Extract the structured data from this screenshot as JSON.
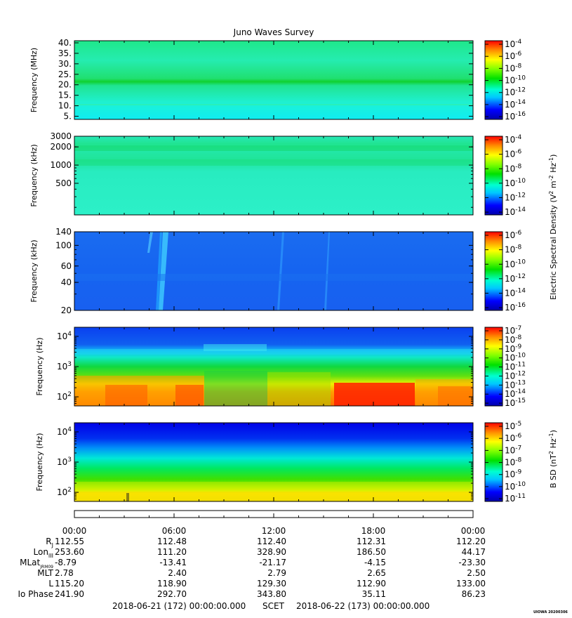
{
  "title": "Juno Waves Survey",
  "chart_data": [
    {
      "type": "heatmap",
      "ylabel": "Frequency (MHz)",
      "yscale": "linear",
      "ylim": [
        3.5,
        41
      ],
      "yticks": [
        5,
        10,
        15,
        20,
        25,
        30,
        35,
        40
      ],
      "ytick_labels": [
        "5.",
        "10.",
        "15.",
        "20.",
        "25.",
        "30.",
        "35.",
        "40."
      ],
      "colorbar": {
        "labels": [
          "10-16",
          "10-14",
          "10-12",
          "10-10",
          "10-8",
          "10-6",
          "10-4"
        ],
        "exponents": [
          -16,
          -14,
          -12,
          -10,
          -8,
          -6,
          -4
        ]
      }
    },
    {
      "type": "heatmap",
      "ylabel": "Frequency (kHz)",
      "yscale": "log",
      "ylim": [
        150,
        3000
      ],
      "yticks": [
        500,
        1000,
        2000,
        3000
      ],
      "ytick_labels": [
        "500",
        "1000",
        "2000",
        "3000"
      ],
      "colorbar": {
        "labels": [
          "10-14",
          "10-12",
          "10-10",
          "10-8",
          "10-6",
          "10-4"
        ],
        "exponents": [
          -14,
          -12,
          -10,
          -8,
          -6,
          -4
        ]
      }
    },
    {
      "type": "heatmap",
      "ylabel": "Frequency (kHz)",
      "yscale": "log",
      "ylim": [
        20,
        140
      ],
      "yticks": [
        20,
        40,
        60,
        100,
        140
      ],
      "ytick_labels": [
        "20",
        "40",
        "60",
        "100",
        "140"
      ],
      "colorbar": {
        "labels": [
          "10-16",
          "10-14",
          "10-12",
          "10-10",
          "10-8",
          "10-6"
        ],
        "exponents": [
          -16,
          -14,
          -12,
          -10,
          -8,
          -6
        ]
      }
    },
    {
      "type": "heatmap",
      "ylabel": "Frequency (Hz)",
      "yscale": "log",
      "ylim": [
        50,
        20000
      ],
      "yticks": [
        100,
        1000,
        10000
      ],
      "ytick_labels": [
        [
          "10",
          "2"
        ],
        [
          "10",
          "3"
        ],
        [
          "10",
          "4"
        ]
      ],
      "colorbar": {
        "labels": [
          "10-15",
          "10-14",
          "10-13",
          "10-12",
          "10-11",
          "10-10",
          "10-9",
          "10-8",
          "10-7"
        ],
        "exponents": [
          -15,
          -14,
          -13,
          -12,
          -11,
          -10,
          -9,
          -8,
          -7
        ]
      }
    },
    {
      "type": "heatmap",
      "ylabel": "Frequency (Hz)",
      "yscale": "log",
      "ylim": [
        50,
        20000
      ],
      "yticks": [
        100,
        1000,
        10000
      ],
      "ytick_labels": [
        [
          "10",
          "2"
        ],
        [
          "10",
          "3"
        ],
        [
          "10",
          "4"
        ]
      ],
      "colorbar": {
        "labels": [
          "10-11",
          "10-10",
          "10-9",
          "10-8",
          "10-7",
          "10-6",
          "10-5"
        ],
        "exponents": [
          -11,
          -10,
          -9,
          -8,
          -7,
          -6,
          -5
        ]
      }
    }
  ],
  "colorbar_titles": {
    "e_field": {
      "main": "Electric Spectral Density (V",
      "sup1": "2",
      "mid": " m",
      "sup2": "-2",
      "mid2": " Hz",
      "sup3": "-1",
      "end": ")"
    },
    "b_field": {
      "main": "B SD (nT",
      "sup1": "2",
      "mid": " Hz",
      "sup2": "-1",
      "end": ")"
    }
  },
  "time_axis": {
    "ticks": [
      "00:00",
      "06:00",
      "12:00",
      "18:00",
      "00:00"
    ],
    "hours": [
      0,
      6,
      12,
      18,
      24
    ],
    "minor_step_hours": 1.5
  },
  "ephemeris": {
    "rows": [
      {
        "label": "R",
        "sub": "J",
        "values": [
          "112.55",
          "112.48",
          "112.40",
          "112.31",
          "112.20"
        ]
      },
      {
        "label": "Lon",
        "sub": "III",
        "values": [
          "253.60",
          "111.20",
          "328.90",
          "186.50",
          "44.17"
        ]
      },
      {
        "label": "MLat",
        "sub": "JRM09",
        "values": [
          "-8.79",
          "-13.41",
          "-21.17",
          "-4.15",
          "-23.30"
        ]
      },
      {
        "label": "MLT",
        "sub": "",
        "values": [
          "2.78",
          "2.40",
          "2.79",
          "2.65",
          "2.50"
        ]
      },
      {
        "label": "L",
        "sub": "",
        "values": [
          "115.20",
          "118.90",
          "129.30",
          "112.90",
          "133.00"
        ]
      },
      {
        "label": "Io Phase",
        "sub": "",
        "values": [
          "241.90",
          "292.70",
          "343.80",
          "35.11",
          "86.23"
        ]
      }
    ]
  },
  "footer": {
    "start": "2018-06-21 (172) 00:00:00.000",
    "scet": "SCET",
    "end": "2018-06-22 (173) 00:00:00.000",
    "stamp": "UIOWA 20200306"
  }
}
